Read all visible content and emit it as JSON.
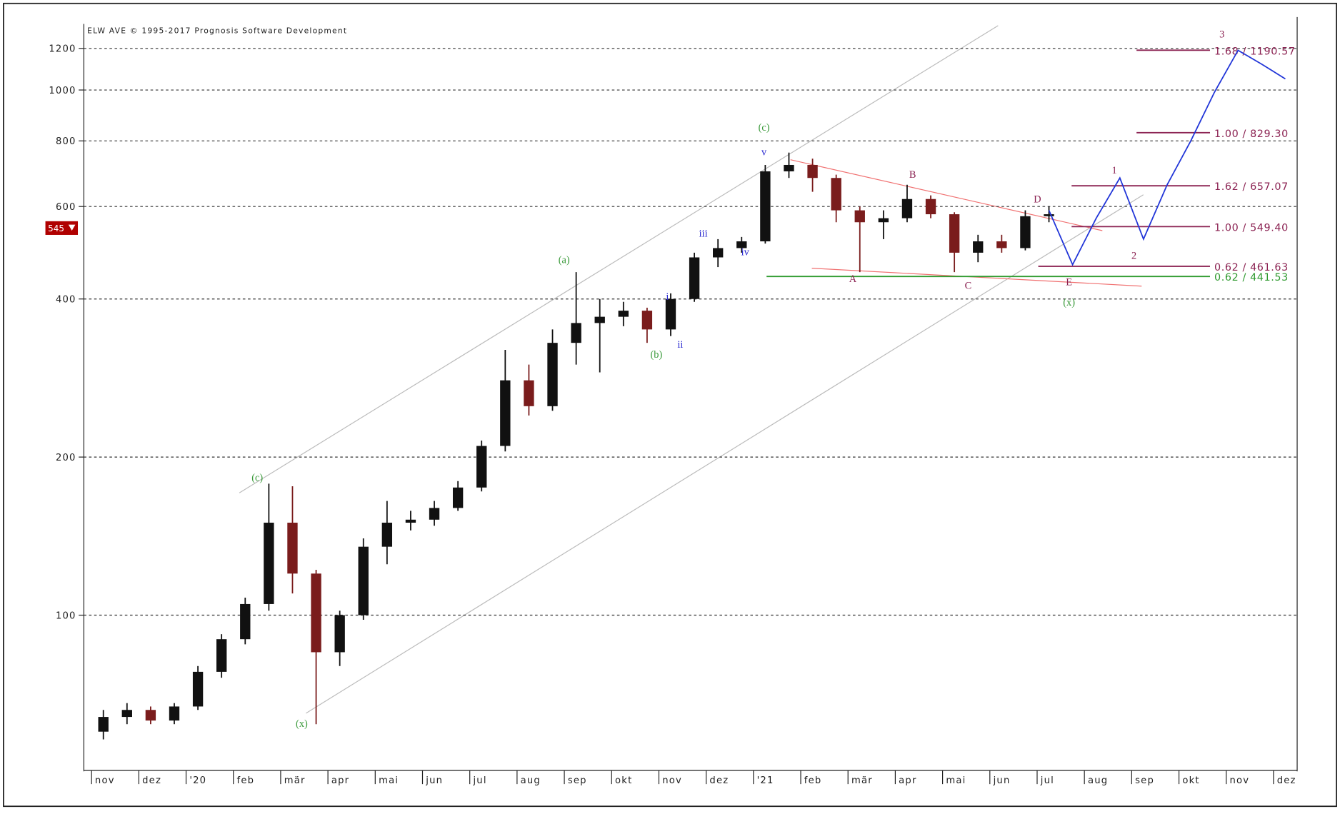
{
  "chart_data": {
    "type": "candlestick",
    "header": "ELW AVE © 1995-2017 Prognosis Software Development",
    "log_scale": true,
    "grid": true,
    "ylim": [
      51,
      1440
    ],
    "yticks": [
      100,
      200,
      400,
      600,
      800,
      1000,
      1200
    ],
    "categories": [
      "nov",
      null,
      "dez",
      null,
      "'20",
      null,
      "feb",
      null,
      "mär",
      null,
      "apr",
      null,
      "mai",
      null,
      "jun",
      null,
      "jul",
      null,
      "aug",
      null,
      "sep",
      null,
      "okt",
      null,
      "nov",
      null,
      "dez",
      null,
      "'21",
      null,
      "feb",
      null,
      "mär",
      null,
      "apr",
      null,
      "mai",
      null,
      "jun",
      null,
      "jul",
      null,
      "aug",
      null,
      "sep",
      null,
      "okt",
      null,
      "nov",
      null,
      "dez"
    ],
    "up_color": "#111111",
    "down_color": "#7a1c1c",
    "open": [
      60,
      64,
      66,
      63,
      67,
      78,
      90,
      105,
      150,
      120,
      85,
      100,
      135,
      150,
      152,
      160,
      175,
      210,
      280,
      250,
      330,
      360,
      370,
      380,
      350,
      400,
      480,
      500,
      515,
      700,
      720,
      680,
      590,
      560,
      570,
      620,
      580,
      490,
      515,
      500,
      575,
      null,
      null,
      null,
      null,
      null,
      null,
      null,
      null,
      null,
      null
    ],
    "high": [
      66,
      68,
      67,
      68,
      80,
      92,
      108,
      178,
      176,
      122,
      102,
      140,
      165,
      158,
      165,
      180,
      215,
      320,
      300,
      350,
      450,
      400,
      395,
      385,
      410,
      490,
      520,
      525,
      720,
      760,
      740,
      690,
      600,
      590,
      660,
      630,
      585,
      530,
      530,
      590,
      600,
      null,
      null,
      null,
      null,
      null,
      null,
      null,
      null,
      null,
      null
    ],
    "low": [
      58,
      62,
      62,
      62,
      66,
      76,
      88,
      102,
      110,
      62,
      80,
      98,
      125,
      145,
      148,
      158,
      172,
      205,
      240,
      245,
      300,
      290,
      355,
      330,
      340,
      395,
      460,
      490,
      510,
      680,
      640,
      560,
      450,
      520,
      560,
      570,
      450,
      470,
      490,
      495,
      560,
      null,
      null,
      null,
      null,
      null,
      null,
      null,
      null,
      null,
      null
    ],
    "close": [
      64,
      66,
      63,
      67,
      78,
      90,
      105,
      150,
      120,
      85,
      100,
      135,
      150,
      152,
      160,
      175,
      210,
      280,
      250,
      330,
      360,
      370,
      380,
      350,
      400,
      480,
      500,
      515,
      700,
      720,
      680,
      590,
      560,
      570,
      620,
      580,
      490,
      515,
      500,
      575,
      580,
      null,
      null,
      null,
      null,
      null,
      null,
      null,
      null,
      null,
      null
    ],
    "current_price": 545,
    "projection": {
      "color": "#2236d8",
      "values": [
        null,
        null,
        null,
        null,
        null,
        null,
        null,
        null,
        null,
        null,
        null,
        null,
        null,
        null,
        null,
        null,
        null,
        null,
        null,
        null,
        null,
        null,
        null,
        null,
        null,
        null,
        null,
        null,
        null,
        null,
        null,
        null,
        null,
        null,
        null,
        null,
        null,
        null,
        null,
        null,
        590,
        465,
        570,
        680,
        520,
        660,
        800,
        990,
        1190,
        1120,
        1050
      ]
    },
    "levels": [
      {
        "label": "1.68 / 1190.57",
        "value": 1190.57,
        "color": "#8b2252"
      },
      {
        "label": "1.00 / 829.30",
        "value": 829.3,
        "color": "#8b2252"
      },
      {
        "label": "1.62 / 657.07",
        "value": 657.07,
        "color": "#8b2252"
      },
      {
        "label": "1.00 / 549.40",
        "value": 549.4,
        "color": "#8b2252"
      },
      {
        "label": "0.62 / 461.63",
        "value": 461.63,
        "color": "#8b2252"
      },
      {
        "label": "0.62 / 441.53",
        "value": 441.53,
        "color": "#2f9a2f"
      }
    ],
    "annotations": [
      {
        "text": "(c)",
        "color": "#3a9a3a"
      },
      {
        "text": "(x)",
        "color": "#3a9a3a"
      },
      {
        "text": "(a)",
        "color": "#3a9a3a"
      },
      {
        "text": "(b)",
        "color": "#3a9a3a"
      },
      {
        "text": "(c)",
        "color": "#3a9a3a"
      },
      {
        "text": "(x)",
        "color": "#3a9a3a"
      },
      {
        "text": "i",
        "color": "#2a2ad0"
      },
      {
        "text": "ii",
        "color": "#2a2ad0"
      },
      {
        "text": "iii",
        "color": "#2a2ad0"
      },
      {
        "text": "iv",
        "color": "#2a2ad0"
      },
      {
        "text": "v",
        "color": "#2a2ad0"
      },
      {
        "text": "A",
        "color": "#8b2252"
      },
      {
        "text": "B",
        "color": "#8b2252"
      },
      {
        "text": "C",
        "color": "#8b2252"
      },
      {
        "text": "D",
        "color": "#8b2252"
      },
      {
        "text": "E",
        "color": "#8b2252"
      },
      {
        "text": "1",
        "color": "#8b2252"
      },
      {
        "text": "2",
        "color": "#8b2252"
      },
      {
        "text": "3",
        "color": "#8b2252"
      }
    ]
  }
}
